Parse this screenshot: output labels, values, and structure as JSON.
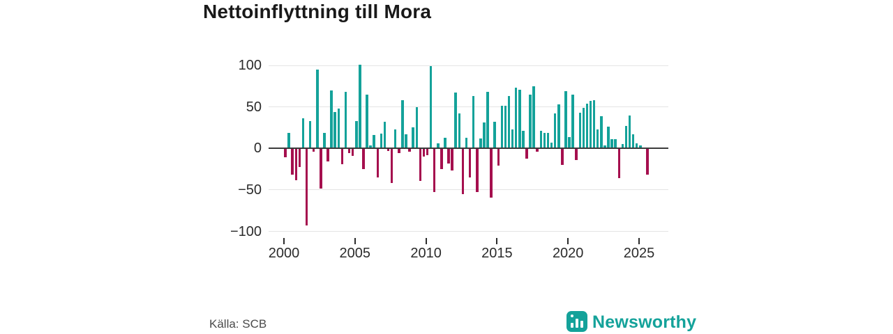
{
  "header": {
    "title": "Nettoinflyttning till Mora"
  },
  "footer": {
    "source": "Källa: SCB",
    "brand_name": "Newsworthy"
  },
  "chart_data": {
    "type": "bar",
    "title": "Nettoinflyttning till Mora",
    "frequency": "quarterly",
    "start_year": 2000,
    "start_quarter": 1,
    "x_tick_years": [
      2000,
      2005,
      2010,
      2015,
      2020,
      2025
    ],
    "x_tick_labels": [
      "2000",
      "2005",
      "2010",
      "2015",
      "2020",
      "2025"
    ],
    "y_ticks": [
      100,
      50,
      0,
      -50,
      -100
    ],
    "y_tick_labels": [
      "100",
      "50",
      "0",
      "−50",
      "−100"
    ],
    "ylim": [
      -100,
      100
    ],
    "grid": true,
    "legend": "none",
    "positive_color": "#14a29a",
    "negative_color": "#a50f4e",
    "values": [
      -11,
      19,
      -32,
      -38,
      -22,
      36,
      -93,
      33,
      -4,
      95,
      -48,
      19,
      -16,
      70,
      44,
      48,
      -19,
      68,
      -6,
      -9,
      33,
      101,
      -25,
      65,
      4,
      16,
      -35,
      18,
      32,
      -3,
      -42,
      23,
      -6,
      58,
      17,
      -4,
      25,
      50,
      -39,
      -10,
      -8,
      99,
      -53,
      6,
      -25,
      13,
      -18,
      -27,
      67,
      42,
      -55,
      13,
      -35,
      63,
      -53,
      12,
      31,
      68,
      -59,
      32,
      -21,
      51,
      51,
      63,
      23,
      73,
      71,
      21,
      -12,
      65,
      75,
      -4,
      21,
      19,
      19,
      7,
      42,
      53,
      -20,
      69,
      14,
      65,
      -14,
      43,
      49,
      54,
      57,
      58,
      23,
      39,
      4,
      26,
      11,
      11,
      -36,
      5,
      27,
      40,
      17,
      6,
      4,
      0,
      -32
    ]
  }
}
